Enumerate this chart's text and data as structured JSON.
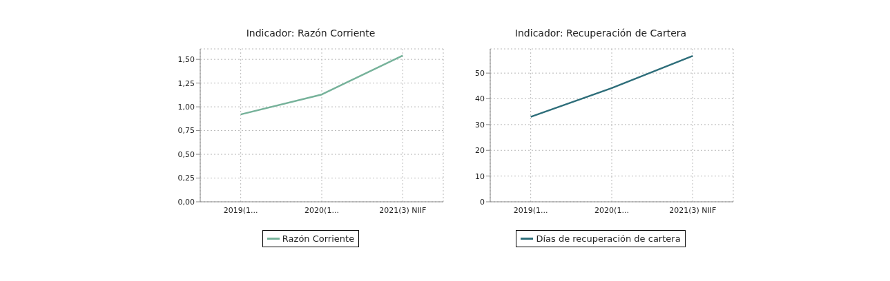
{
  "chart_data": [
    {
      "type": "line",
      "title": "Indicador: Razón Corriente",
      "categories": [
        "2019(1...",
        "2020(1...",
        "2021(3) NIIF"
      ],
      "series": [
        {
          "name": "Razón Corriente",
          "color": "#76b29a",
          "values": [
            0.92,
            1.13,
            1.54
          ]
        }
      ],
      "ylim": [
        0,
        1.61
      ],
      "yticks": [
        {
          "value": 0,
          "label": "0,00"
        },
        {
          "value": 0.25,
          "label": "0,25"
        },
        {
          "value": 0.5,
          "label": "0,50"
        },
        {
          "value": 0.75,
          "label": "0,75"
        },
        {
          "value": 1,
          "label": "1,00"
        },
        {
          "value": 1.25,
          "label": "1,25"
        },
        {
          "value": 1.5,
          "label": "1,50"
        }
      ],
      "grid": true,
      "legend": "bottom",
      "marker": "none",
      "line_style": "solid"
    },
    {
      "type": "line",
      "title": "Indicador: Recuperación de Cartera",
      "categories": [
        "2019(1...",
        "2020(1...",
        "2021(3) NIIF"
      ],
      "series": [
        {
          "name": "Días de recuperación de cartera",
          "color": "#2e6e7a",
          "values": [
            33,
            44.2,
            56.7
          ]
        }
      ],
      "ylim": [
        0,
        59.4
      ],
      "yticks": [
        0,
        10,
        20,
        30,
        40,
        50
      ],
      "grid": true,
      "legend": "bottom",
      "marker": "none",
      "line_style": "solid"
    }
  ]
}
